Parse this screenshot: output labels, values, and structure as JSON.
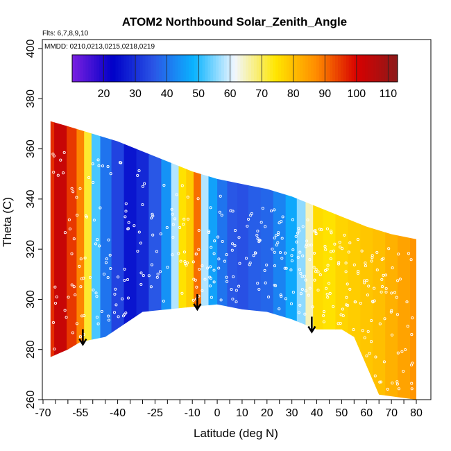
{
  "chart_data": {
    "type": "heatmap",
    "title": "ATOM2 Northbound Solar_Zenith_Angle",
    "subtitle_flights": "Flts: 6,7,8,9,10",
    "subtitle_dates": "MMDD: 0210,0213,0215,0218,0219",
    "xlabel": "Latitude (deg N)",
    "ylabel": "Theta (C)",
    "xlim": [
      -70,
      82
    ],
    "ylim": [
      260,
      402
    ],
    "x_ticks": [
      -70,
      -55,
      -40,
      -25,
      -10,
      0,
      10,
      20,
      30,
      40,
      50,
      60,
      70,
      80
    ],
    "x_minor_ticks": [
      -65,
      -60,
      -50,
      -45,
      -35,
      -30,
      -20,
      -15,
      -5,
      5,
      15,
      25,
      35,
      45,
      55,
      65,
      75
    ],
    "y_ticks": [
      260,
      280,
      300,
      320,
      340,
      360,
      380,
      400
    ],
    "colorbar": {
      "min": 10,
      "max": 113,
      "ticks": [
        20,
        30,
        40,
        50,
        60,
        70,
        80,
        90,
        100,
        110
      ],
      "colors": [
        "#7a1fe0",
        "#0000c8",
        "#2a55e6",
        "#0ab4ff",
        "#f2f7ff",
        "#ffe600",
        "#ff8c00",
        "#d80000",
        "#8b1a1a"
      ]
    },
    "upper_boundary": [
      [
        -67,
        371
      ],
      [
        -60,
        369
      ],
      [
        -50,
        366
      ],
      [
        -40,
        363
      ],
      [
        -30,
        359
      ],
      [
        -20,
        355
      ],
      [
        -10,
        351
      ],
      [
        0,
        348
      ],
      [
        10,
        346
      ],
      [
        20,
        344
      ],
      [
        30,
        341
      ],
      [
        40,
        337
      ],
      [
        50,
        333
      ],
      [
        60,
        329
      ],
      [
        70,
        326
      ],
      [
        80,
        324
      ]
    ],
    "lower_boundary": [
      [
        -67,
        277
      ],
      [
        -60,
        280
      ],
      [
        -55,
        283
      ],
      [
        -50,
        284
      ],
      [
        -45,
        285
      ],
      [
        -30,
        295
      ],
      [
        -10,
        297
      ],
      [
        0,
        298
      ],
      [
        10,
        296
      ],
      [
        20,
        295
      ],
      [
        30,
        292
      ],
      [
        40,
        288
      ],
      [
        50,
        288
      ],
      [
        55,
        285
      ],
      [
        65,
        262
      ],
      [
        80,
        260
      ]
    ],
    "sza_columns": [
      {
        "lat": -68,
        "sza": 96
      },
      {
        "lat": -63,
        "sza": 103
      },
      {
        "lat": -58,
        "sza": 95
      },
      {
        "lat": -55,
        "sza": 88
      },
      {
        "lat": -52,
        "sza": 72
      },
      {
        "lat": -49,
        "sza": 52
      },
      {
        "lat": -45,
        "sza": 40
      },
      {
        "lat": -40,
        "sza": 33
      },
      {
        "lat": -35,
        "sza": 26
      },
      {
        "lat": -30,
        "sza": 29
      },
      {
        "lat": -25,
        "sza": 36
      },
      {
        "lat": -20,
        "sza": 44
      },
      {
        "lat": -17,
        "sza": 58
      },
      {
        "lat": -14,
        "sza": 75
      },
      {
        "lat": -11,
        "sza": 78
      },
      {
        "lat": -8,
        "sza": 90
      },
      {
        "lat": -5,
        "sza": 58
      },
      {
        "lat": -2,
        "sza": 46
      },
      {
        "lat": 2,
        "sza": 40
      },
      {
        "lat": 6,
        "sza": 36
      },
      {
        "lat": 10,
        "sza": 35
      },
      {
        "lat": 15,
        "sza": 37
      },
      {
        "lat": 20,
        "sza": 38
      },
      {
        "lat": 25,
        "sza": 42
      },
      {
        "lat": 30,
        "sza": 47
      },
      {
        "lat": 34,
        "sza": 56
      },
      {
        "lat": 37,
        "sza": 65
      },
      {
        "lat": 40,
        "sza": 76
      },
      {
        "lat": 45,
        "sza": 75
      },
      {
        "lat": 50,
        "sza": 77
      },
      {
        "lat": 55,
        "sza": 78
      },
      {
        "lat": 60,
        "sza": 79
      },
      {
        "lat": 65,
        "sza": 80
      },
      {
        "lat": 70,
        "sza": 82
      },
      {
        "lat": 75,
        "sza": 84
      },
      {
        "lat": 80,
        "sza": 86
      }
    ],
    "arrows": [
      {
        "lat": -54,
        "theta": 282
      },
      {
        "lat": -8,
        "theta": 296
      },
      {
        "lat": 38,
        "theta": 287
      }
    ]
  }
}
